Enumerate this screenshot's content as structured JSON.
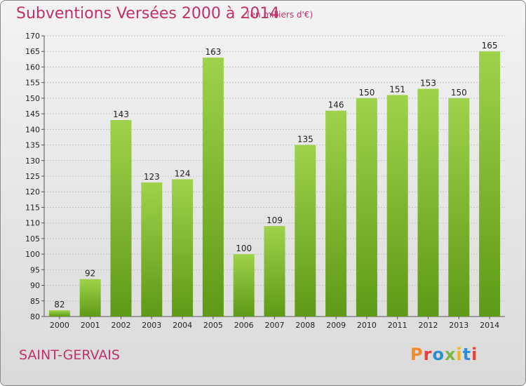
{
  "header": {
    "title": "Subventions Versées 2000 à 2014",
    "unit": "(en milliers d'€)"
  },
  "footer": {
    "commune": "SAINT-GERVAIS",
    "logo": "Proxiti",
    "logo_colors": [
      "#f28c28",
      "#e8403a",
      "#2a8fd6",
      "#7ab648",
      "#f2b51c",
      "#2a8fd6",
      "#e8403a"
    ]
  },
  "chart_data": {
    "type": "bar",
    "categories": [
      "2000",
      "2001",
      "2002",
      "2003",
      "2004",
      "2005",
      "2006",
      "2007",
      "2008",
      "2009",
      "2010",
      "2011",
      "2012",
      "2013",
      "2014"
    ],
    "values": [
      82,
      92,
      143,
      123,
      124,
      163,
      100,
      109,
      135,
      146,
      150,
      151,
      153,
      150,
      165
    ],
    "ylim": [
      80,
      170
    ],
    "ytick_step": 5,
    "grid": true,
    "bar_color": "#7ab829",
    "bar_color_light": "#9fd24a",
    "bar_color_dark": "#5e9a16"
  }
}
